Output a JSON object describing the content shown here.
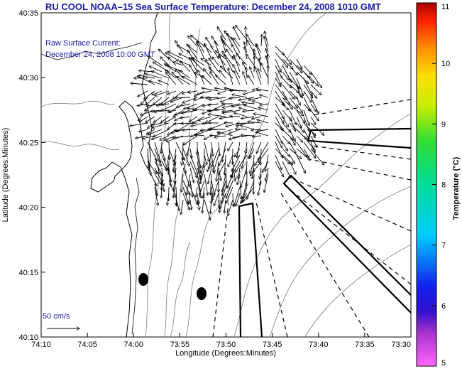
{
  "title": "RU COOL  NOAA–15  Sea Surface Temperature:  December 24, 2008 1010 GMT",
  "annotation": {
    "line1": "Raw Surface Current:",
    "line2": "December 24, 2008 10:00 GMT"
  },
  "scale_label": "50 cm/s",
  "chart_data": {
    "type": "map",
    "xlabel": "Longitude (Degrees:Minutes)",
    "ylabel": "Latitude (Degrees:Minutes)",
    "xlim_deg": [
      -74.1667,
      -73.5
    ],
    "ylim_deg": [
      40.1667,
      40.5833
    ],
    "x_ticks": [
      "74:10",
      "74:05",
      "74:00",
      "73:55",
      "73:50",
      "73:45",
      "73:40",
      "73:35",
      "73:30"
    ],
    "y_ticks": [
      "40:10",
      "40:15",
      "40:20",
      "40:25",
      "40:30",
      "40:35"
    ],
    "colorbar": {
      "label": "Temperature (°C)",
      "min": 5,
      "max": 11,
      "ticks": [
        "5",
        "6",
        "7",
        "8",
        "9",
        "10",
        "11"
      ]
    }
  }
}
